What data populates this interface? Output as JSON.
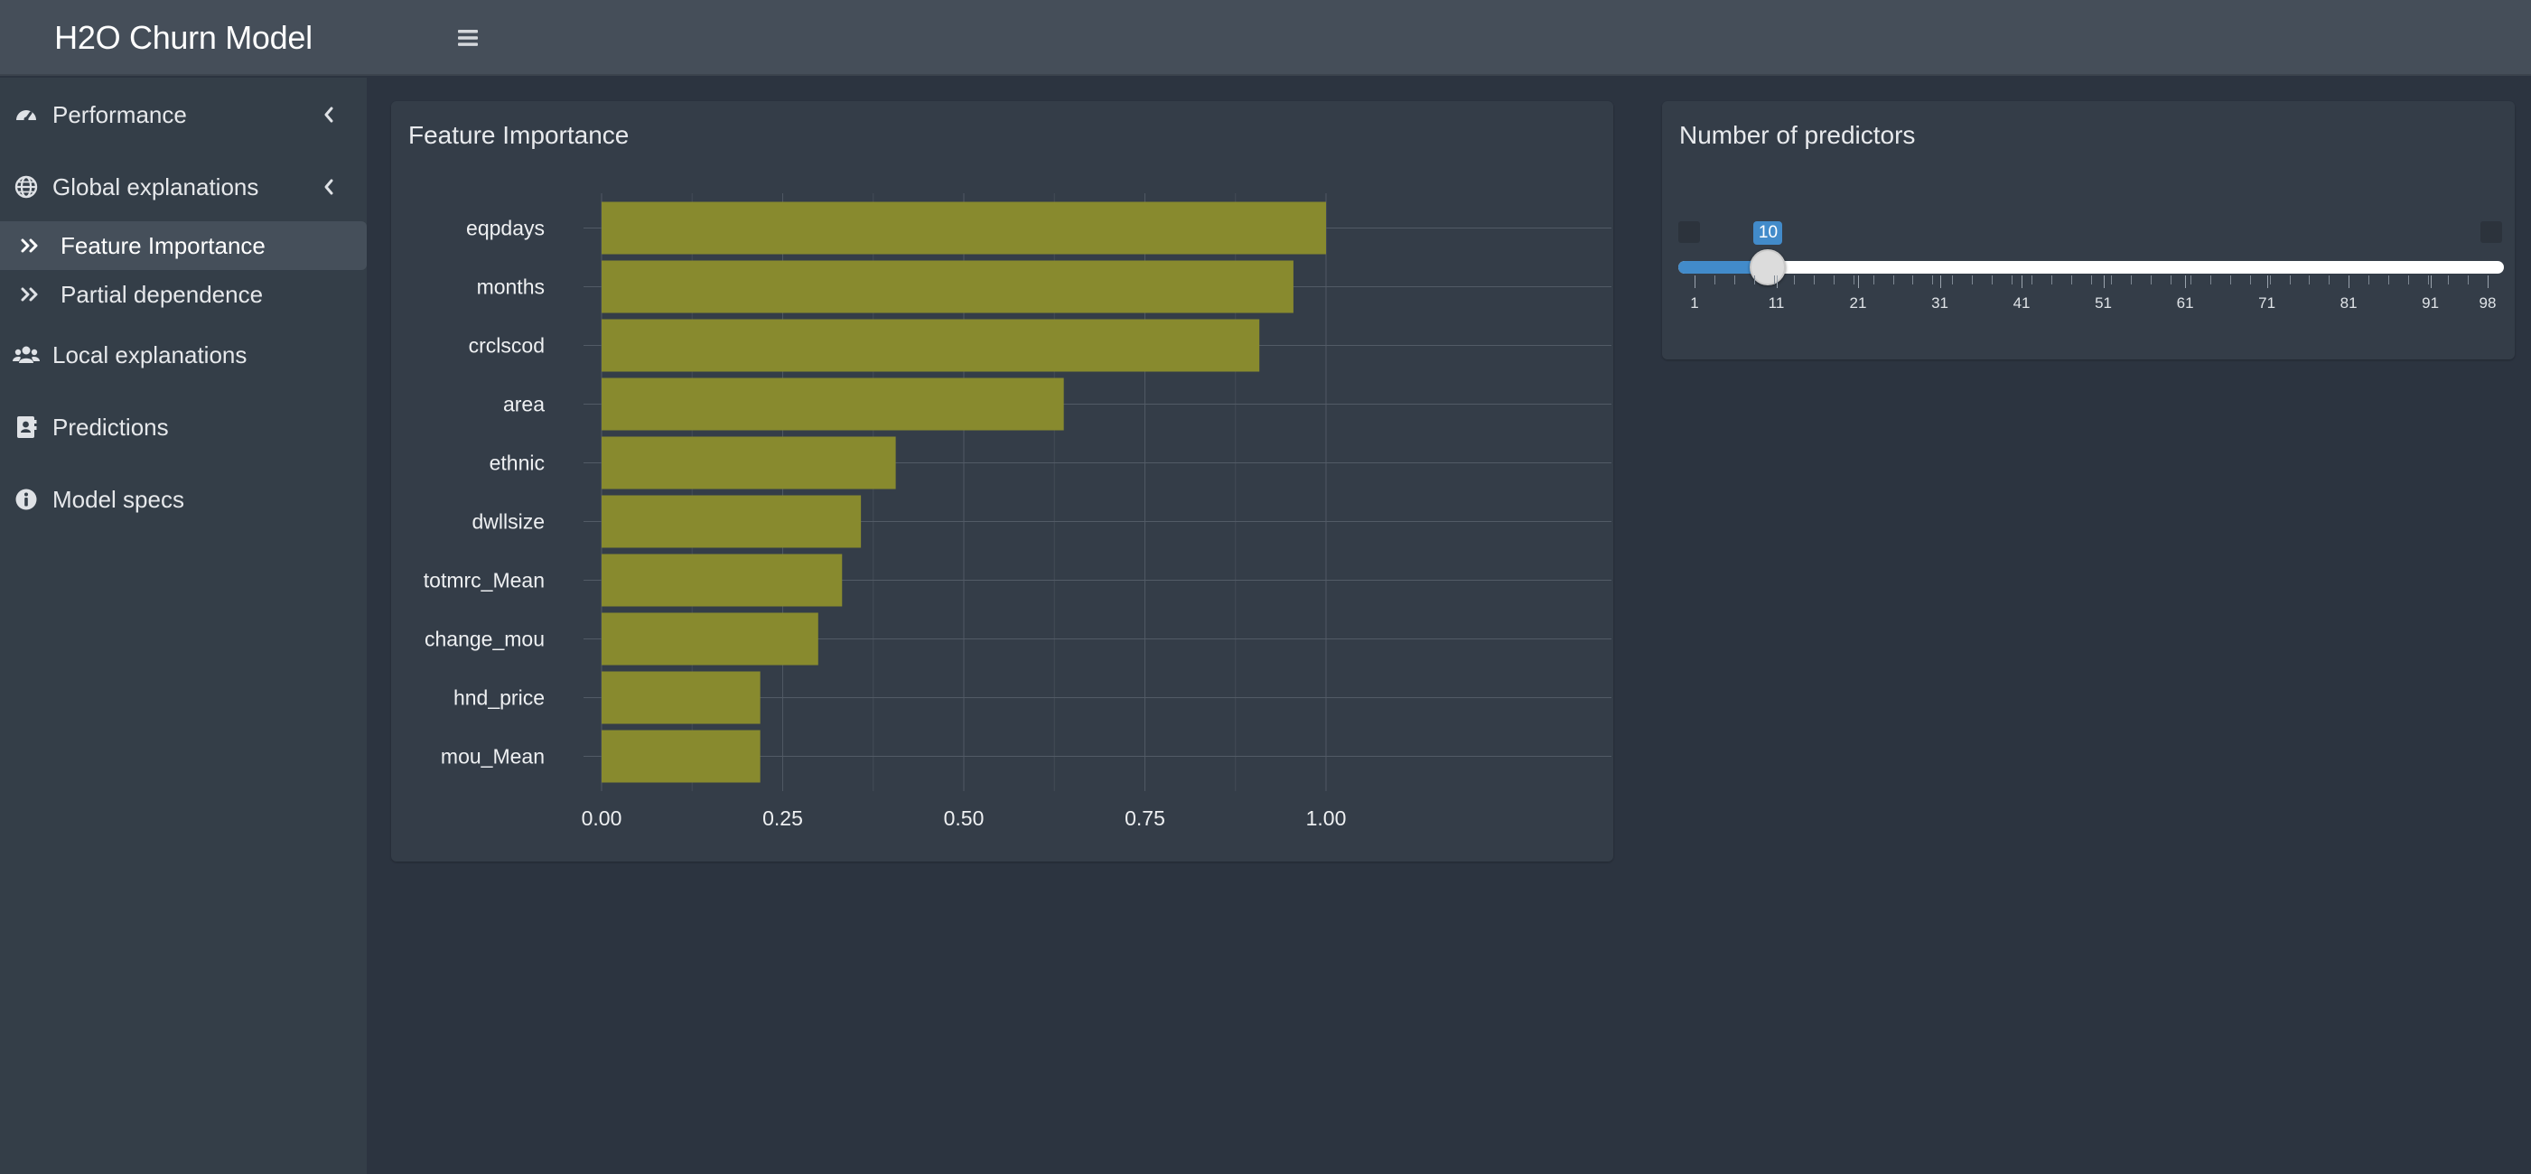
{
  "app": {
    "title": "H2O Churn Model",
    "menu_icon": "hamburger-icon"
  },
  "sidebar": {
    "items": [
      {
        "label": "Performance",
        "icon": "tachometer-icon",
        "expandable": true
      },
      {
        "label": "Global explanations",
        "icon": "globe-icon",
        "expandable": true,
        "children": [
          {
            "label": "Feature Importance",
            "icon": "double-chevron-right-icon",
            "active": true
          },
          {
            "label": "Partial dependence",
            "icon": "double-chevron-right-icon",
            "active": false
          }
        ]
      },
      {
        "label": "Local explanations",
        "icon": "users-icon",
        "expandable": false
      },
      {
        "label": "Predictions",
        "icon": "address-book-icon",
        "expandable": false
      },
      {
        "label": "Model specs",
        "icon": "info-circle-icon",
        "expandable": false
      }
    ]
  },
  "feature_box": {
    "title": "Feature Importance"
  },
  "predictors_box": {
    "title": "Number of predictors",
    "slider": {
      "min": 1,
      "max": 98,
      "value": 10,
      "value_label": "10",
      "grid_labels": [
        "1",
        "11",
        "21",
        "31",
        "41",
        "51",
        "61",
        "71",
        "81",
        "91",
        "98"
      ],
      "fill_color": "#428bca"
    }
  },
  "chart_data": {
    "type": "bar",
    "orientation": "horizontal",
    "categories": [
      "eqpdays",
      "months",
      "crclscod",
      "area",
      "ethnic",
      "dwllsize",
      "totmrc_Mean",
      "change_mou",
      "hnd_price",
      "mou_Mean"
    ],
    "values": [
      1.0,
      0.955,
      0.908,
      0.638,
      0.406,
      0.358,
      0.332,
      0.299,
      0.219,
      0.219
    ],
    "xlim": [
      0,
      1.0
    ],
    "x_ticks": [
      "0.00",
      "0.25",
      "0.50",
      "0.75",
      "1.00"
    ],
    "x_tick_values": [
      0,
      0.25,
      0.5,
      0.75,
      1.0
    ],
    "bar_color": "#888a2e",
    "grid": true,
    "xlabel": "",
    "ylabel": ""
  }
}
